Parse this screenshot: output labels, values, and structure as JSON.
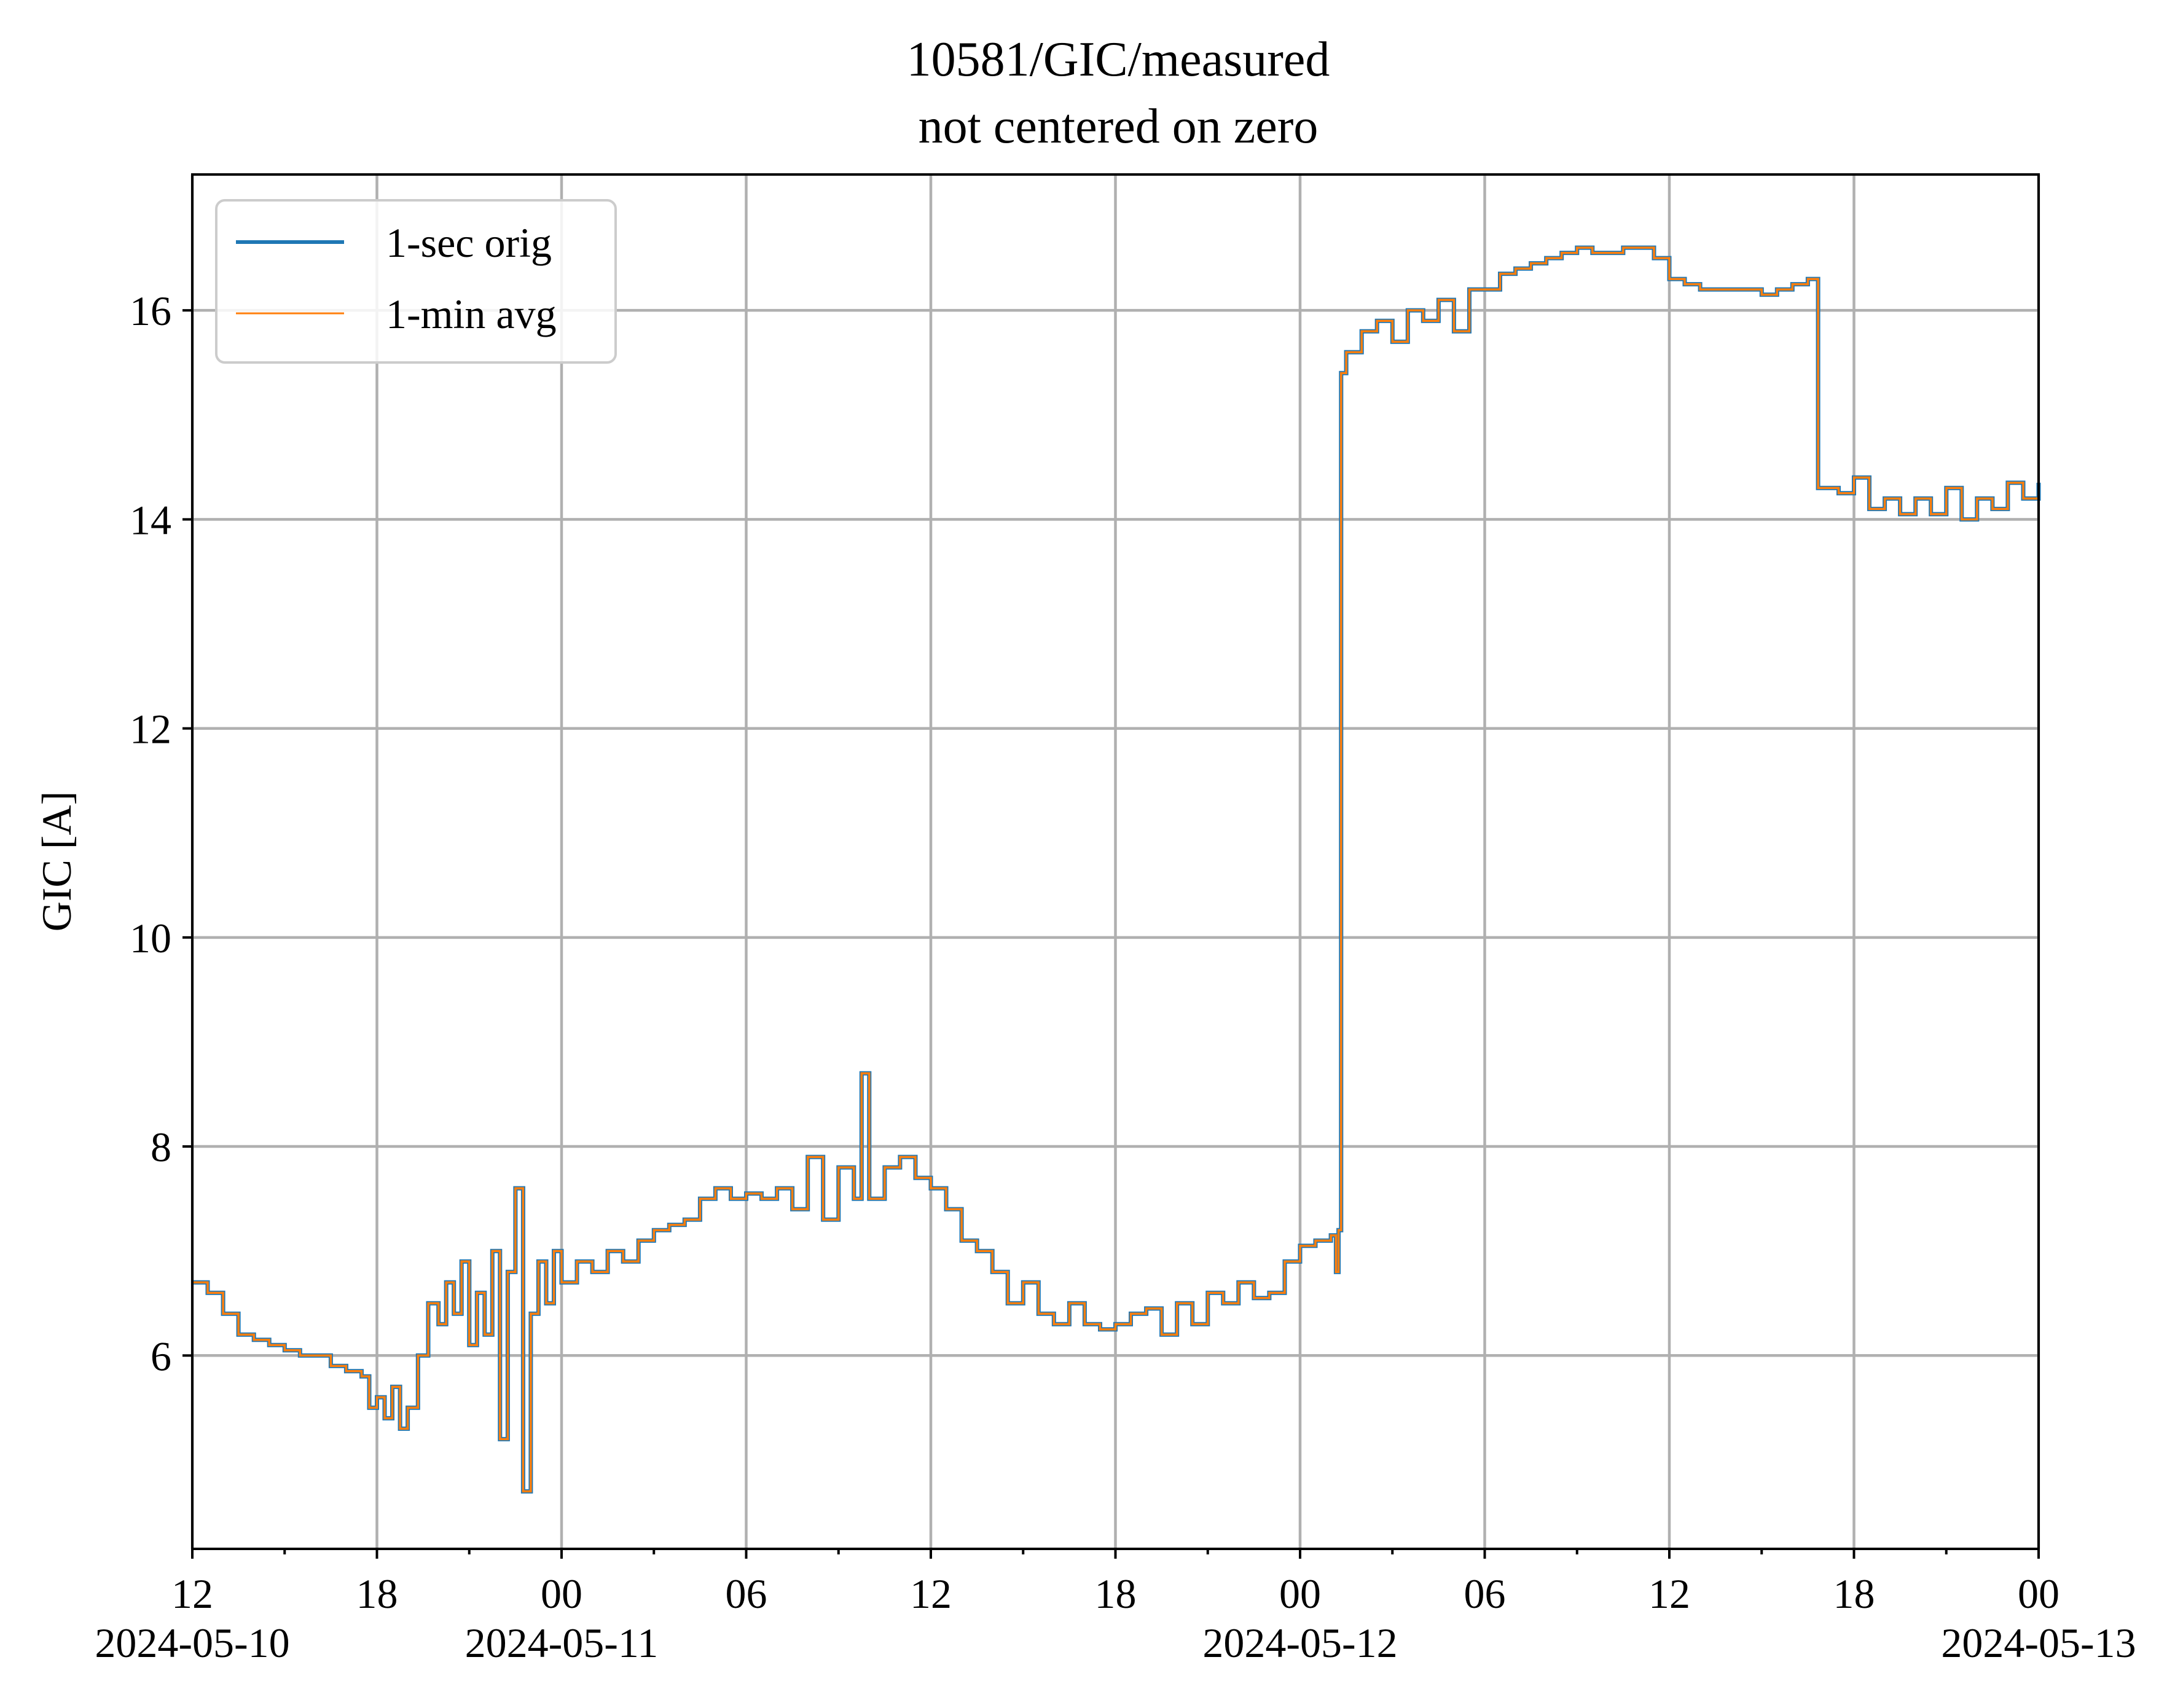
{
  "chart_data": {
    "type": "line",
    "title": "10581/GIC/measured",
    "subtitle": "not centered on zero",
    "xlabel": "",
    "ylabel": "GIC [A]",
    "x_range": [
      "2024-05-10 12:00",
      "2024-05-13 00:00"
    ],
    "ylim": [
      4.15,
      17.3
    ],
    "grid": true,
    "legend_position": "upper-left",
    "x_major_ticks": [
      {
        "x": "2024-05-10 12:00",
        "label": "12",
        "date_label": "2024-05-10"
      },
      {
        "x": "2024-05-10 18:00",
        "label": "18",
        "date_label": ""
      },
      {
        "x": "2024-05-11 00:00",
        "label": "00",
        "date_label": "2024-05-11"
      },
      {
        "x": "2024-05-11 06:00",
        "label": "06",
        "date_label": ""
      },
      {
        "x": "2024-05-11 12:00",
        "label": "12",
        "date_label": ""
      },
      {
        "x": "2024-05-11 18:00",
        "label": "18",
        "date_label": ""
      },
      {
        "x": "2024-05-12 00:00",
        "label": "00",
        "date_label": "2024-05-12"
      },
      {
        "x": "2024-05-12 06:00",
        "label": "06",
        "date_label": ""
      },
      {
        "x": "2024-05-12 12:00",
        "label": "12",
        "date_label": ""
      },
      {
        "x": "2024-05-12 18:00",
        "label": "18",
        "date_label": ""
      },
      {
        "x": "2024-05-13 00:00",
        "label": "00",
        "date_label": "2024-05-13"
      }
    ],
    "y_ticks": [
      {
        "value": 6,
        "label": "6"
      },
      {
        "value": 8,
        "label": "8"
      },
      {
        "value": 10,
        "label": "10"
      },
      {
        "value": 12,
        "label": "12"
      },
      {
        "value": 14,
        "label": "14"
      },
      {
        "value": 16,
        "label": "16"
      }
    ],
    "series": [
      {
        "name": "1-sec orig",
        "color": "#1f77b4",
        "x": [
          "2024-05-10 12:00",
          "2024-05-10 12:30",
          "2024-05-10 13:00",
          "2024-05-10 13:30",
          "2024-05-10 14:00",
          "2024-05-10 14:30",
          "2024-05-10 15:00",
          "2024-05-10 15:30",
          "2024-05-10 16:00",
          "2024-05-10 16:30",
          "2024-05-10 17:00",
          "2024-05-10 17:30",
          "2024-05-10 17:45",
          "2024-05-10 18:00",
          "2024-05-10 18:15",
          "2024-05-10 18:30",
          "2024-05-10 18:45",
          "2024-05-10 19:00",
          "2024-05-10 19:20",
          "2024-05-10 19:40",
          "2024-05-10 20:00",
          "2024-05-10 20:15",
          "2024-05-10 20:30",
          "2024-05-10 20:45",
          "2024-05-10 21:00",
          "2024-05-10 21:15",
          "2024-05-10 21:30",
          "2024-05-10 21:45",
          "2024-05-10 22:00",
          "2024-05-10 22:15",
          "2024-05-10 22:30",
          "2024-05-10 22:45",
          "2024-05-10 23:00",
          "2024-05-10 23:15",
          "2024-05-10 23:30",
          "2024-05-10 23:45",
          "2024-05-11 00:00",
          "2024-05-11 00:30",
          "2024-05-11 01:00",
          "2024-05-11 01:30",
          "2024-05-11 02:00",
          "2024-05-11 02:30",
          "2024-05-11 03:00",
          "2024-05-11 03:30",
          "2024-05-11 04:00",
          "2024-05-11 04:30",
          "2024-05-11 05:00",
          "2024-05-11 05:30",
          "2024-05-11 06:00",
          "2024-05-11 06:30",
          "2024-05-11 07:00",
          "2024-05-11 07:30",
          "2024-05-11 08:00",
          "2024-05-11 08:30",
          "2024-05-11 09:00",
          "2024-05-11 09:30",
          "2024-05-11 09:45",
          "2024-05-11 10:00",
          "2024-05-11 10:30",
          "2024-05-11 11:00",
          "2024-05-11 11:30",
          "2024-05-11 12:00",
          "2024-05-11 12:30",
          "2024-05-11 13:00",
          "2024-05-11 13:30",
          "2024-05-11 14:00",
          "2024-05-11 14:30",
          "2024-05-11 15:00",
          "2024-05-11 15:30",
          "2024-05-11 16:00",
          "2024-05-11 16:30",
          "2024-05-11 17:00",
          "2024-05-11 17:30",
          "2024-05-11 18:00",
          "2024-05-11 18:30",
          "2024-05-11 19:00",
          "2024-05-11 19:30",
          "2024-05-11 20:00",
          "2024-05-11 20:30",
          "2024-05-11 21:00",
          "2024-05-11 21:30",
          "2024-05-11 22:00",
          "2024-05-11 22:30",
          "2024-05-11 23:00",
          "2024-05-11 23:30",
          "2024-05-12 00:00",
          "2024-05-12 00:30",
          "2024-05-12 01:00",
          "2024-05-12 01:10",
          "2024-05-12 01:15",
          "2024-05-12 01:20",
          "2024-05-12 01:30",
          "2024-05-12 02:00",
          "2024-05-12 02:30",
          "2024-05-12 03:00",
          "2024-05-12 03:30",
          "2024-05-12 04:00",
          "2024-05-12 04:30",
          "2024-05-12 05:00",
          "2024-05-12 05:30",
          "2024-05-12 06:00",
          "2024-05-12 06:30",
          "2024-05-12 07:00",
          "2024-05-12 07:30",
          "2024-05-12 08:00",
          "2024-05-12 08:30",
          "2024-05-12 09:00",
          "2024-05-12 09:30",
          "2024-05-12 10:00",
          "2024-05-12 10:30",
          "2024-05-12 11:00",
          "2024-05-12 11:30",
          "2024-05-12 12:00",
          "2024-05-12 12:30",
          "2024-05-12 13:00",
          "2024-05-12 13:30",
          "2024-05-12 14:00",
          "2024-05-12 14:30",
          "2024-05-12 15:00",
          "2024-05-12 15:30",
          "2024-05-12 16:00",
          "2024-05-12 16:30",
          "2024-05-12 16:45",
          "2024-05-12 16:50",
          "2024-05-12 17:00",
          "2024-05-12 17:30",
          "2024-05-12 18:00",
          "2024-05-12 18:30",
          "2024-05-12 19:00",
          "2024-05-12 19:30",
          "2024-05-12 20:00",
          "2024-05-12 20:30",
          "2024-05-12 21:00",
          "2024-05-12 21:30",
          "2024-05-12 22:00",
          "2024-05-12 22:30",
          "2024-05-12 23:00",
          "2024-05-12 23:30",
          "2024-05-13 00:00"
        ],
        "y": [
          6.7,
          6.6,
          6.4,
          6.2,
          6.15,
          6.1,
          6.05,
          6.0,
          6.0,
          5.9,
          5.85,
          5.8,
          5.5,
          5.6,
          5.4,
          5.7,
          5.3,
          5.5,
          6.0,
          6.5,
          6.3,
          6.7,
          6.4,
          6.9,
          6.1,
          6.6,
          6.2,
          7.0,
          5.2,
          6.8,
          7.6,
          4.7,
          6.4,
          6.9,
          6.5,
          7.0,
          6.7,
          6.9,
          6.8,
          7.0,
          6.9,
          7.1,
          7.2,
          7.25,
          7.3,
          7.5,
          7.6,
          7.5,
          7.55,
          7.5,
          7.6,
          7.4,
          7.9,
          7.3,
          7.8,
          7.5,
          8.7,
          7.5,
          7.8,
          7.9,
          7.7,
          7.6,
          7.4,
          7.1,
          7.0,
          6.8,
          6.5,
          6.7,
          6.4,
          6.3,
          6.5,
          6.3,
          6.25,
          6.3,
          6.4,
          6.45,
          6.2,
          6.5,
          6.3,
          6.6,
          6.5,
          6.7,
          6.55,
          6.6,
          6.9,
          7.05,
          7.1,
          7.15,
          6.8,
          7.2,
          15.4,
          15.6,
          15.8,
          15.9,
          15.7,
          16.0,
          15.9,
          16.1,
          15.8,
          16.2,
          16.2,
          16.35,
          16.4,
          16.45,
          16.5,
          16.55,
          16.6,
          16.55,
          16.55,
          16.6,
          16.6,
          16.5,
          16.3,
          16.25,
          16.2,
          16.2,
          16.2,
          16.2,
          16.15,
          16.2,
          16.25,
          16.3,
          16.3,
          14.3,
          14.3,
          14.25,
          14.4,
          14.1,
          14.2,
          14.05,
          14.2,
          14.05,
          14.3,
          14.0,
          14.2,
          14.1,
          14.35,
          14.2,
          14.35
        ]
      },
      {
        "name": "1-min avg",
        "color": "#ff7f0e"
      }
    ]
  }
}
